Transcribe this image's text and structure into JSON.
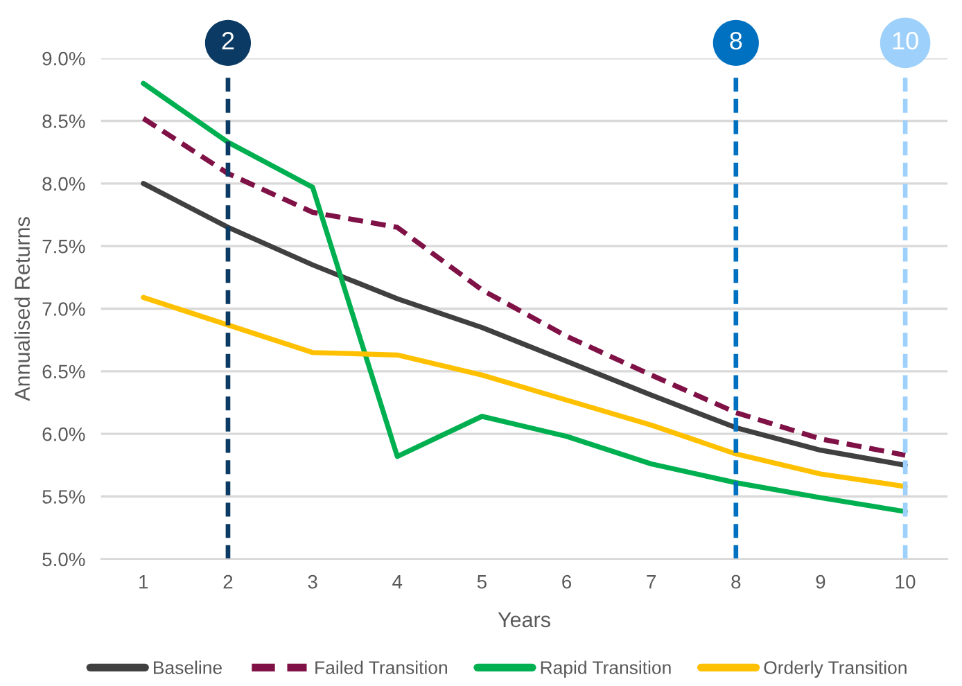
{
  "chart_data": {
    "type": "line",
    "xlabel": "Years",
    "ylabel": "Annualised Returns",
    "categories": [
      "1",
      "2",
      "3",
      "4",
      "5",
      "6",
      "7",
      "8",
      "9",
      "10"
    ],
    "series": [
      {
        "name": "Baseline",
        "color": "#404040",
        "line_style": "solid",
        "values": [
          8.0,
          7.65,
          7.35,
          7.08,
          6.85,
          6.58,
          6.31,
          6.05,
          5.87,
          5.75
        ]
      },
      {
        "name": "Failed Transition",
        "color": "#7f1146",
        "line_style": "dashed",
        "values": [
          8.52,
          8.08,
          7.77,
          7.65,
          7.15,
          6.78,
          6.47,
          6.17,
          5.96,
          5.83
        ]
      },
      {
        "name": "Rapid Transition",
        "color": "#00b050",
        "line_style": "solid",
        "values": [
          8.8,
          8.33,
          7.97,
          5.82,
          6.14,
          5.98,
          5.76,
          5.61,
          5.49,
          5.38
        ]
      },
      {
        "name": "Orderly Transition",
        "color": "#ffc000",
        "line_style": "solid",
        "values": [
          7.09,
          6.87,
          6.65,
          6.63,
          6.47,
          6.27,
          6.07,
          5.84,
          5.68,
          5.58
        ]
      }
    ],
    "ylim": [
      5.0,
      9.0
    ],
    "yticks": [
      {
        "value": 5.0,
        "label": "5.0%"
      },
      {
        "value": 5.5,
        "label": "5.5%"
      },
      {
        "value": 6.0,
        "label": "6.0%"
      },
      {
        "value": 6.5,
        "label": "6.5%"
      },
      {
        "value": 7.0,
        "label": "7.0%"
      },
      {
        "value": 7.5,
        "label": "7.5%"
      },
      {
        "value": 8.0,
        "label": "8.0%"
      },
      {
        "value": 8.5,
        "label": "8.5%"
      },
      {
        "value": 9.0,
        "label": "9.0%"
      }
    ],
    "ref_lines": [
      {
        "axis": "x",
        "value": "2",
        "label": "2",
        "color": "#0b3a64",
        "line_style": "dashed"
      },
      {
        "axis": "x",
        "value": "8",
        "label": "8",
        "color": "#0070c0",
        "line_style": "dashed"
      },
      {
        "axis": "x",
        "value": "10",
        "label": "10",
        "color": "#9dd1fb",
        "line_style": "dashed"
      }
    ],
    "grid": "y",
    "legend": "bottom",
    "marker": "none"
  }
}
